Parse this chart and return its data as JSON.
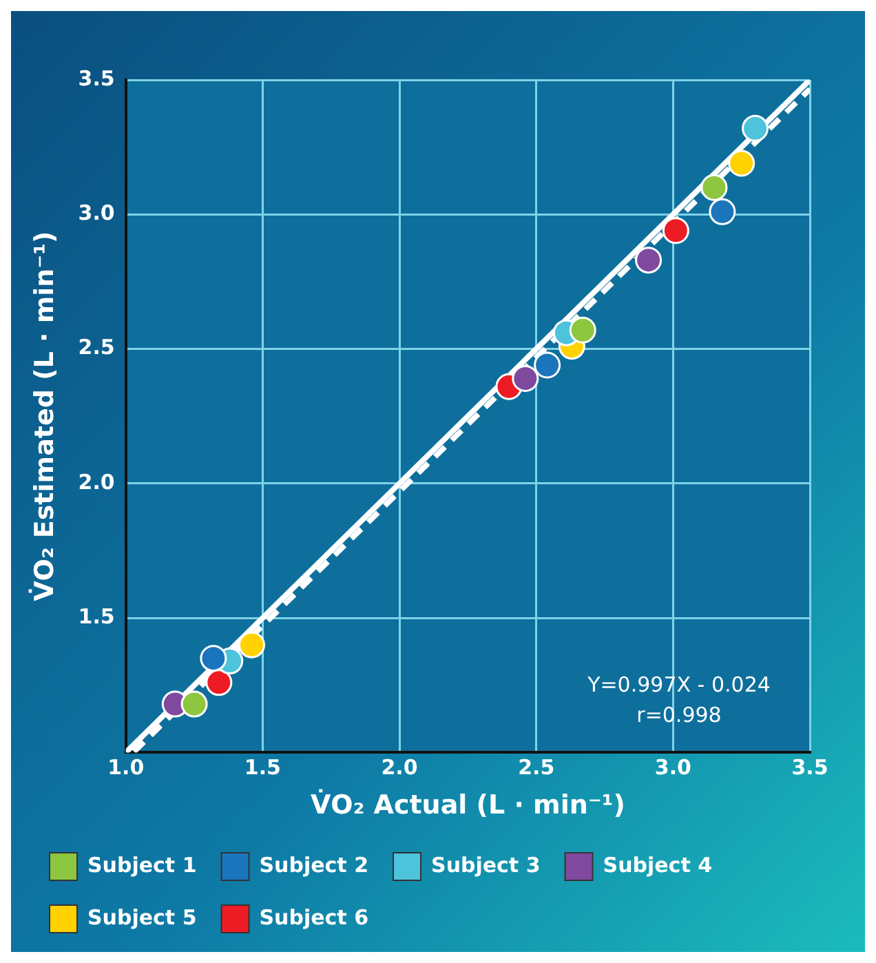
{
  "chart_data": {
    "type": "scatter",
    "xlabel": "V̇O₂ Actual (L · min⁻¹)",
    "ylabel": "V̇O₂ Estimated (L · min⁻¹)",
    "xlim": [
      1.0,
      3.5
    ],
    "xticks": [
      {
        "value": 1.0,
        "label": "1.0"
      },
      1.5,
      {
        "value": 2.0,
        "label": "2.0"
      },
      2.5,
      {
        "value": 3.0,
        "label": "3.0"
      },
      3.5
    ],
    "ylim": [
      1.0,
      3.5
    ],
    "yticks": [
      1.5,
      {
        "value": 2.0,
        "label": "2.0"
      },
      2.5,
      {
        "value": 3.0,
        "label": "3.0"
      },
      3.5
    ],
    "grid": true,
    "legend": "bottom",
    "marker": "circle",
    "annotations": [
      "Y=0.997X - 0.024",
      "r=0.998"
    ],
    "series": [
      {
        "name": "Subject 1",
        "color": "#8dc63f",
        "x": [
          1.25,
          2.67,
          3.15
        ],
        "values": [
          1.18,
          2.57,
          3.1
        ]
      },
      {
        "name": "Subject 2",
        "color": "#1b75bc",
        "x": [
          1.32,
          2.54,
          3.18
        ],
        "values": [
          1.35,
          2.44,
          3.01
        ]
      },
      {
        "name": "Subject 3",
        "color": "#4dc3dc",
        "x": [
          1.38,
          2.61,
          3.3
        ],
        "values": [
          1.34,
          2.56,
          3.32
        ]
      },
      {
        "name": "Subject 4",
        "color": "#7f4a9d",
        "x": [
          1.18,
          2.46,
          2.91
        ],
        "values": [
          1.18,
          2.39,
          2.83
        ]
      },
      {
        "name": "Subject 5",
        "color": "#ffd200",
        "x": [
          1.46,
          2.63,
          3.25
        ],
        "values": [
          1.4,
          2.51,
          3.19
        ]
      },
      {
        "name": "Subject 6",
        "color": "#ed1c24",
        "x": [
          1.34,
          2.4,
          3.01
        ],
        "values": [
          1.26,
          2.36,
          2.94
        ]
      },
      {
        "type": "line",
        "color": "#ffffff",
        "line_style": "solid",
        "marker": "none",
        "x": [
          1.0,
          3.5
        ],
        "values": [
          1.0,
          3.5
        ]
      },
      {
        "type": "line",
        "color": "#ffffff",
        "line_style": "dashed",
        "marker": "none",
        "x": [
          1.03,
          3.5
        ],
        "values": [
          1.003,
          3.466
        ]
      }
    ]
  }
}
